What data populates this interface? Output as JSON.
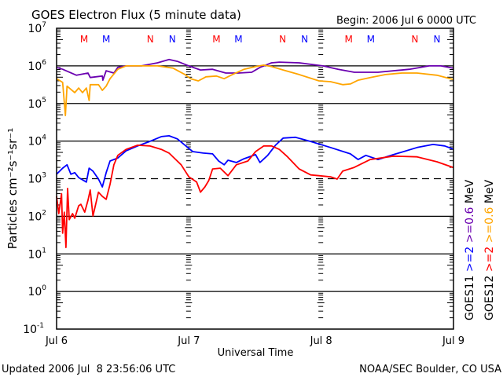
{
  "chart_data": {
    "type": "line",
    "title": "GOES Electron Flux (5 minute data)",
    "begin_label": "Begin: 2006 Jul 6 0000 UTC",
    "xlabel": "Universal Time",
    "ylabel": "Particles cm⁻²s⁻¹sr⁻¹",
    "y_scale": "log",
    "ylim": [
      0.1,
      10000000
    ],
    "y_ticks": [
      {
        "base": "10",
        "exp": "7"
      },
      {
        "base": "10",
        "exp": "6"
      },
      {
        "base": "10",
        "exp": "5"
      },
      {
        "base": "10",
        "exp": "4"
      },
      {
        "base": "10",
        "exp": "3"
      },
      {
        "base": "10",
        "exp": "2"
      },
      {
        "base": "10",
        "exp": "1"
      },
      {
        "base": "10",
        "exp": "0"
      },
      {
        "base": "10",
        "exp": "-1"
      }
    ],
    "x_unit": "hours since 2006 Jul 6 0000 UTC",
    "xlim": [
      0,
      72
    ],
    "x_ticks": [
      "Jul 6",
      "Jul 7",
      "Jul 8",
      "Jul 9"
    ],
    "threshold_line": 1000,
    "markers": [
      {
        "label": "M",
        "hour": 5,
        "color": "#ff0000"
      },
      {
        "label": "M",
        "hour": 9,
        "color": "#0000ff"
      },
      {
        "label": "N",
        "hour": 17,
        "color": "#ff0000"
      },
      {
        "label": "N",
        "hour": 21,
        "color": "#0000ff"
      },
      {
        "label": "M",
        "hour": 29,
        "color": "#ff0000"
      },
      {
        "label": "M",
        "hour": 33,
        "color": "#0000ff"
      },
      {
        "label": "N",
        "hour": 41,
        "color": "#ff0000"
      },
      {
        "label": "N",
        "hour": 45,
        "color": "#0000ff"
      },
      {
        "label": "M",
        "hour": 53,
        "color": "#ff0000"
      },
      {
        "label": "M",
        "hour": 57,
        "color": "#0000ff"
      },
      {
        "label": "N",
        "hour": 65,
        "color": "#ff0000"
      },
      {
        "label": "N",
        "hour": 69,
        "color": "#0000ff"
      }
    ],
    "value_format": "[hour, log10(flux)]",
    "series": [
      {
        "name": "GOES11 >=0.6 MeV",
        "color": "#6a00b0",
        "points": [
          [
            0,
            5.96
          ],
          [
            1.1,
            5.91
          ],
          [
            3.6,
            5.75
          ],
          [
            5.7,
            5.81
          ],
          [
            6.1,
            5.69
          ],
          [
            8.3,
            5.73
          ],
          [
            8.4,
            5.62
          ],
          [
            9,
            5.87
          ],
          [
            10.4,
            5.81
          ],
          [
            11.1,
            5.96
          ],
          [
            12.6,
            6.0
          ],
          [
            15.4,
            6.0
          ],
          [
            18.3,
            6.08
          ],
          [
            20.4,
            6.17
          ],
          [
            21.9,
            6.12
          ],
          [
            24,
            6.0
          ],
          [
            26.1,
            5.89
          ],
          [
            28.3,
            5.91
          ],
          [
            30.7,
            5.81
          ],
          [
            33,
            5.81
          ],
          [
            35.4,
            5.83
          ],
          [
            36.9,
            5.96
          ],
          [
            39,
            6.08
          ],
          [
            40.4,
            6.1
          ],
          [
            44,
            6.08
          ],
          [
            48.3,
            6.0
          ],
          [
            51.1,
            5.91
          ],
          [
            54,
            5.83
          ],
          [
            58.3,
            5.83
          ],
          [
            64,
            5.91
          ],
          [
            67.6,
            6.0
          ],
          [
            69.7,
            6.0
          ],
          [
            71.9,
            5.94
          ]
        ]
      },
      {
        "name": "GOES12 >=0.6 MeV",
        "color": "#ffa500",
        "points": [
          [
            0,
            5.66
          ],
          [
            1.1,
            5.56
          ],
          [
            1.6,
            4.68
          ],
          [
            1.9,
            5.46
          ],
          [
            3.3,
            5.29
          ],
          [
            4,
            5.41
          ],
          [
            4.7,
            5.29
          ],
          [
            5.4,
            5.41
          ],
          [
            5.9,
            5.08
          ],
          [
            6.1,
            5.5
          ],
          [
            7.6,
            5.5
          ],
          [
            8.3,
            5.35
          ],
          [
            9,
            5.46
          ],
          [
            9.7,
            5.66
          ],
          [
            11.1,
            5.91
          ],
          [
            12.6,
            6.0
          ],
          [
            18.3,
            6.0
          ],
          [
            21.1,
            5.94
          ],
          [
            23.3,
            5.77
          ],
          [
            24.3,
            5.66
          ],
          [
            25.7,
            5.6
          ],
          [
            27.1,
            5.71
          ],
          [
            29,
            5.73
          ],
          [
            30.4,
            5.66
          ],
          [
            31.9,
            5.77
          ],
          [
            34,
            5.91
          ],
          [
            36.1,
            5.98
          ],
          [
            37.6,
            6.02
          ],
          [
            39,
            5.98
          ],
          [
            41.1,
            5.89
          ],
          [
            44,
            5.77
          ],
          [
            47.6,
            5.6
          ],
          [
            49.7,
            5.58
          ],
          [
            51.9,
            5.5
          ],
          [
            53.3,
            5.52
          ],
          [
            54.7,
            5.62
          ],
          [
            56.9,
            5.69
          ],
          [
            59.7,
            5.77
          ],
          [
            62.6,
            5.81
          ],
          [
            65.4,
            5.81
          ],
          [
            69,
            5.75
          ],
          [
            71.9,
            5.64
          ]
        ]
      },
      {
        "name": "GOES11 >=2 MeV",
        "color": "#0000ff",
        "points": [
          [
            0,
            3.12
          ],
          [
            1.1,
            3.28
          ],
          [
            1.9,
            3.37
          ],
          [
            2.6,
            3.12
          ],
          [
            3.3,
            3.16
          ],
          [
            4,
            3.03
          ],
          [
            5.4,
            2.91
          ],
          [
            5.9,
            3.28
          ],
          [
            6.6,
            3.2
          ],
          [
            7.6,
            2.99
          ],
          [
            8.3,
            2.78
          ],
          [
            9,
            3.16
          ],
          [
            9.7,
            3.47
          ],
          [
            11.1,
            3.55
          ],
          [
            12.6,
            3.74
          ],
          [
            14.7,
            3.87
          ],
          [
            16.9,
            3.99
          ],
          [
            19,
            4.12
          ],
          [
            20.4,
            4.14
          ],
          [
            21.9,
            4.06
          ],
          [
            23.3,
            3.89
          ],
          [
            24.7,
            3.72
          ],
          [
            26.6,
            3.68
          ],
          [
            28.3,
            3.66
          ],
          [
            29.4,
            3.47
          ],
          [
            30.4,
            3.37
          ],
          [
            31.1,
            3.49
          ],
          [
            32.6,
            3.43
          ],
          [
            34,
            3.53
          ],
          [
            36.1,
            3.64
          ],
          [
            36.9,
            3.43
          ],
          [
            38.3,
            3.62
          ],
          [
            39.7,
            3.89
          ],
          [
            41.1,
            4.08
          ],
          [
            43.3,
            4.1
          ],
          [
            46.1,
            3.99
          ],
          [
            49.7,
            3.83
          ],
          [
            53.3,
            3.66
          ],
          [
            54.7,
            3.51
          ],
          [
            56.1,
            3.62
          ],
          [
            58.3,
            3.51
          ],
          [
            61.1,
            3.64
          ],
          [
            65.4,
            3.83
          ],
          [
            68.3,
            3.91
          ],
          [
            70.4,
            3.87
          ],
          [
            71.9,
            3.79
          ]
        ]
      },
      {
        "name": "GOES12 >=2 MeV",
        "color": "#ff0000",
        "points": [
          [
            0,
            2.53
          ],
          [
            0.4,
            2.07
          ],
          [
            0.9,
            2.6
          ],
          [
            1.1,
            1.55
          ],
          [
            1.4,
            2.11
          ],
          [
            1.7,
            1.17
          ],
          [
            2,
            2.74
          ],
          [
            2.3,
            1.91
          ],
          [
            2.9,
            2.07
          ],
          [
            3.3,
            1.95
          ],
          [
            4,
            2.28
          ],
          [
            4.4,
            2.32
          ],
          [
            5.1,
            2.11
          ],
          [
            5.7,
            2.43
          ],
          [
            6.1,
            2.7
          ],
          [
            6.6,
            2.01
          ],
          [
            7.6,
            2.64
          ],
          [
            8.3,
            2.53
          ],
          [
            9,
            2.45
          ],
          [
            9.7,
            2.85
          ],
          [
            10.4,
            3.37
          ],
          [
            11.1,
            3.62
          ],
          [
            12.6,
            3.78
          ],
          [
            14.7,
            3.89
          ],
          [
            16.9,
            3.87
          ],
          [
            19,
            3.78
          ],
          [
            20.4,
            3.68
          ],
          [
            22.6,
            3.37
          ],
          [
            24,
            3.05
          ],
          [
            25.4,
            2.91
          ],
          [
            26.1,
            2.64
          ],
          [
            26.9,
            2.78
          ],
          [
            27.6,
            2.95
          ],
          [
            28.3,
            3.26
          ],
          [
            29.7,
            3.28
          ],
          [
            31.1,
            3.08
          ],
          [
            32.6,
            3.37
          ],
          [
            34.7,
            3.47
          ],
          [
            36.1,
            3.72
          ],
          [
            37.6,
            3.87
          ],
          [
            39,
            3.87
          ],
          [
            40.4,
            3.78
          ],
          [
            41.9,
            3.58
          ],
          [
            44,
            3.26
          ],
          [
            46.1,
            3.1
          ],
          [
            47.6,
            3.08
          ],
          [
            49.7,
            3.05
          ],
          [
            50.9,
            2.99
          ],
          [
            51.9,
            3.2
          ],
          [
            54,
            3.3
          ],
          [
            56.9,
            3.51
          ],
          [
            61.1,
            3.6
          ],
          [
            65.4,
            3.58
          ],
          [
            69,
            3.45
          ],
          [
            71.9,
            3.3
          ]
        ]
      }
    ],
    "legend": {
      "placement": "right",
      "col1": [
        {
          "text": "GOES11",
          "color": "#000000"
        },
        {
          "text": ">=2",
          "color": "#0000ff"
        },
        {
          "text": ">=0.6",
          "color": "#6a00b0"
        },
        {
          "text": "MeV",
          "color": "#000000"
        }
      ],
      "col2": [
        {
          "text": "GOES12",
          "color": "#000000"
        },
        {
          "text": ">=2",
          "color": "#ff0000"
        },
        {
          "text": ">=0.6",
          "color": "#ffa500"
        },
        {
          "text": "MeV",
          "color": "#000000"
        }
      ]
    }
  },
  "footer": {
    "updated": "Updated 2006 Jul  8 23:56:06 UTC",
    "source": "NOAA/SEC Boulder, CO USA"
  }
}
